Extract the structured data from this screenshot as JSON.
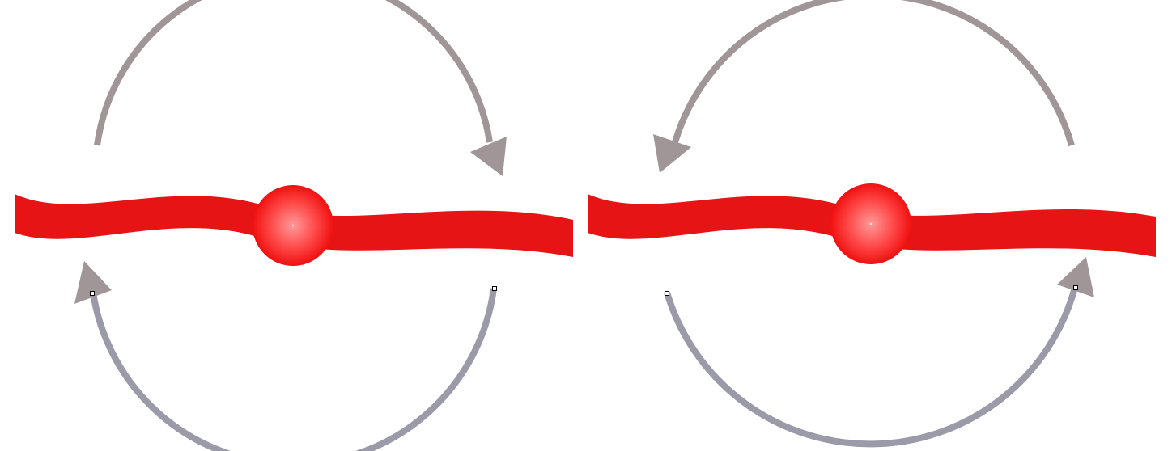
{
  "colors": {
    "background": "#ffffff",
    "ribbon": "#e61414",
    "ball_highlight": "#ff9a9a",
    "ball_mid": "#ff4a4a",
    "ball_edge": "#f01010",
    "arrow": "#a09698",
    "arrow_lower_tint": "#9a9aa8",
    "handle_fill": "#ffffff",
    "handle_stroke": "#000000"
  },
  "diagrams": [
    {
      "id": "left",
      "upper_arrow_direction": "clockwise",
      "lower_arrow_direction": "clockwise"
    },
    {
      "id": "right",
      "upper_arrow_direction": "counterclockwise",
      "lower_arrow_direction": "counterclockwise"
    }
  ]
}
